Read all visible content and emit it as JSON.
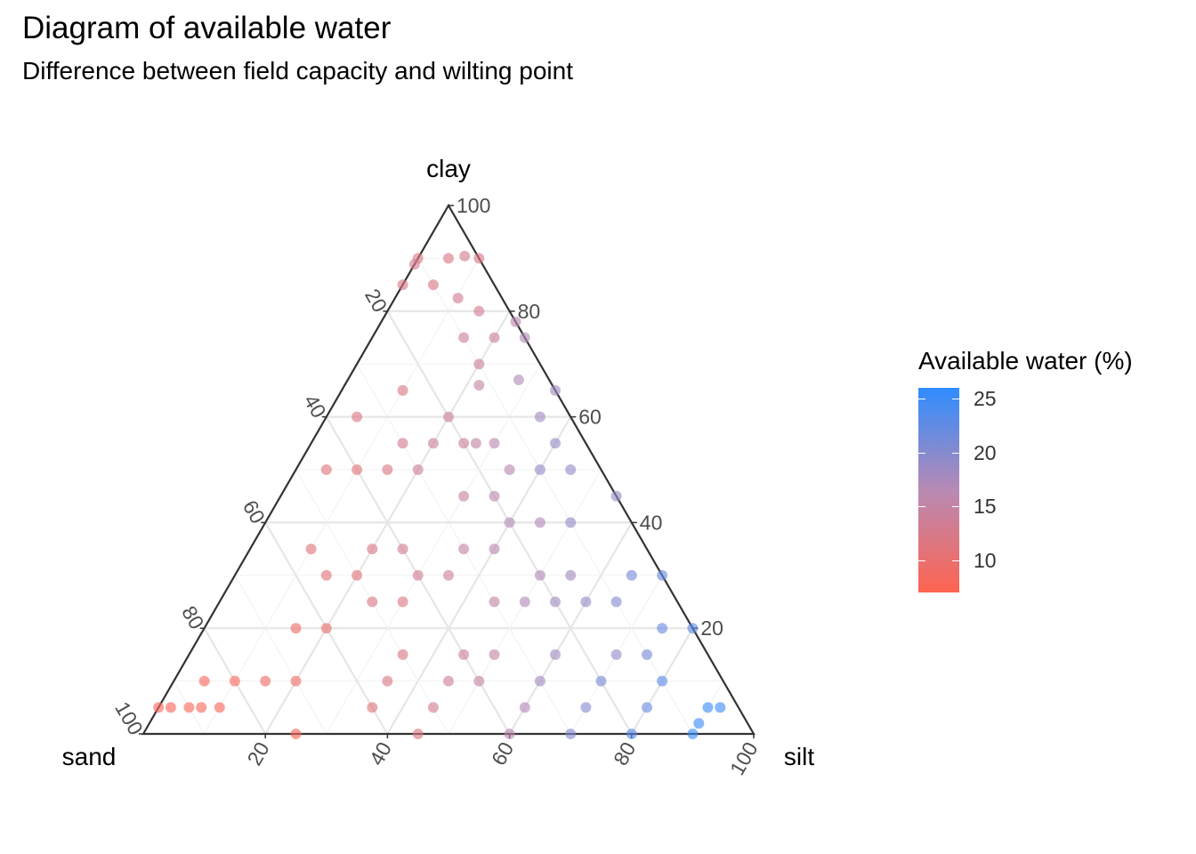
{
  "title": "Diagram of available water",
  "subtitle": "Difference between field capacity and wilting point",
  "colors": {
    "low": "#ff6450",
    "mid": "#b88ab4",
    "high": "#2f8cff"
  },
  "chart_data": {
    "type": "scatter",
    "subtype": "ternary",
    "axes": {
      "top": "clay",
      "left": "sand",
      "right": "silt"
    },
    "tick_labels": [
      "20",
      "40",
      "60",
      "80",
      "100"
    ],
    "grid": true,
    "point_fields": [
      "sand",
      "silt",
      "clay",
      "available_water"
    ],
    "points": [
      [
        10,
        0,
        90,
        12
      ],
      [
        5,
        5,
        90,
        12
      ],
      [
        0,
        10,
        90,
        12
      ],
      [
        15,
        0,
        85,
        12
      ],
      [
        10,
        5,
        85,
        12
      ],
      [
        2,
        7,
        85,
        13
      ],
      [
        10,
        0,
        80,
        13
      ],
      [
        7,
        10,
        80,
        13
      ],
      [
        5,
        15,
        80,
        13
      ],
      [
        0,
        22,
        78,
        16
      ],
      [
        5,
        20,
        75,
        14
      ],
      [
        0,
        25,
        75,
        17
      ],
      [
        10,
        15,
        75,
        14
      ],
      [
        5,
        28,
        67,
        17
      ],
      [
        0,
        35,
        65,
        18
      ],
      [
        10,
        20,
        70,
        14
      ],
      [
        12,
        22,
        66,
        15
      ],
      [
        25,
        10,
        65,
        12
      ],
      [
        20,
        20,
        60,
        14
      ],
      [
        5,
        35,
        60,
        18
      ],
      [
        15,
        30,
        55,
        16
      ],
      [
        20,
        25,
        55,
        14
      ],
      [
        35,
        5,
        60,
        12
      ],
      [
        30,
        15,
        55,
        13
      ],
      [
        25,
        20,
        55,
        14
      ],
      [
        18,
        27,
        55,
        15
      ],
      [
        5,
        40,
        55,
        19
      ],
      [
        30,
        20,
        50,
        14
      ],
      [
        10,
        40,
        50,
        19
      ],
      [
        15,
        35,
        50,
        16
      ],
      [
        25,
        30,
        45,
        15
      ],
      [
        20,
        35,
        45,
        16
      ],
      [
        5,
        45,
        50,
        19
      ],
      [
        40,
        10,
        50,
        11
      ],
      [
        45,
        5,
        50,
        11
      ],
      [
        35,
        15,
        50,
        12
      ],
      [
        20,
        40,
        40,
        17
      ],
      [
        0,
        55,
        45,
        19
      ],
      [
        10,
        50,
        40,
        19
      ],
      [
        15,
        45,
        40,
        17
      ],
      [
        30,
        35,
        35,
        15
      ],
      [
        40,
        25,
        35,
        13
      ],
      [
        25,
        40,
        35,
        16
      ],
      [
        45,
        20,
        35,
        12
      ],
      [
        55,
        10,
        35,
        11
      ],
      [
        20,
        50,
        30,
        17
      ],
      [
        35,
        35,
        30,
        14
      ],
      [
        50,
        20,
        30,
        11
      ],
      [
        15,
        55,
        30,
        18
      ],
      [
        5,
        65,
        30,
        21
      ],
      [
        0,
        70,
        30,
        22
      ],
      [
        55,
        15,
        30,
        11
      ],
      [
        40,
        30,
        30,
        13
      ],
      [
        30,
        45,
        25,
        15
      ],
      [
        25,
        50,
        25,
        17
      ],
      [
        20,
        55,
        25,
        18
      ],
      [
        15,
        60,
        25,
        19
      ],
      [
        45,
        30,
        25,
        12
      ],
      [
        50,
        25,
        25,
        12
      ],
      [
        10,
        65,
        25,
        20
      ],
      [
        0,
        80,
        20,
        23
      ],
      [
        5,
        75,
        20,
        22
      ],
      [
        60,
        20,
        20,
        10
      ],
      [
        50,
        35,
        15,
        12
      ],
      [
        40,
        45,
        15,
        14
      ],
      [
        35,
        50,
        15,
        15
      ],
      [
        25,
        60,
        15,
        18
      ],
      [
        15,
        70,
        15,
        19
      ],
      [
        10,
        75,
        15,
        21
      ],
      [
        65,
        15,
        20,
        9
      ],
      [
        75,
        15,
        10,
        9
      ],
      [
        70,
        20,
        10,
        9
      ],
      [
        55,
        35,
        10,
        12
      ],
      [
        45,
        45,
        10,
        14
      ],
      [
        40,
        50,
        10,
        15
      ],
      [
        30,
        60,
        10,
        18
      ],
      [
        20,
        70,
        10,
        21
      ],
      [
        10,
        80,
        10,
        23
      ],
      [
        80,
        10,
        10,
        8
      ],
      [
        85,
        5,
        10,
        8
      ],
      [
        50,
        45,
        5,
        13
      ],
      [
        35,
        60,
        5,
        17
      ],
      [
        25,
        70,
        5,
        20
      ],
      [
        15,
        80,
        5,
        22
      ],
      [
        5,
        90,
        5,
        25
      ],
      [
        90,
        5,
        5,
        8
      ],
      [
        60,
        35,
        5,
        11
      ],
      [
        75,
        25,
        0,
        8
      ],
      [
        55,
        45,
        0,
        12
      ],
      [
        40,
        60,
        0,
        16
      ],
      [
        30,
        70,
        0,
        20
      ],
      [
        20,
        80,
        0,
        23
      ],
      [
        10,
        90,
        0,
        25
      ],
      [
        95,
        0,
        5,
        8
      ],
      [
        93,
        2,
        5,
        8
      ],
      [
        88,
        7,
        5,
        8
      ],
      [
        85,
        10,
        5,
        8
      ],
      [
        3,
        92,
        5,
        25
      ],
      [
        8,
        90,
        2,
        25
      ]
    ]
  },
  "legend": {
    "title": "Available water (%)",
    "min": 7,
    "max": 26,
    "ticks": [
      {
        "value": 10,
        "label": "10"
      },
      {
        "value": 15,
        "label": "15"
      },
      {
        "value": 20,
        "label": "20"
      },
      {
        "value": 25,
        "label": "25"
      }
    ]
  }
}
